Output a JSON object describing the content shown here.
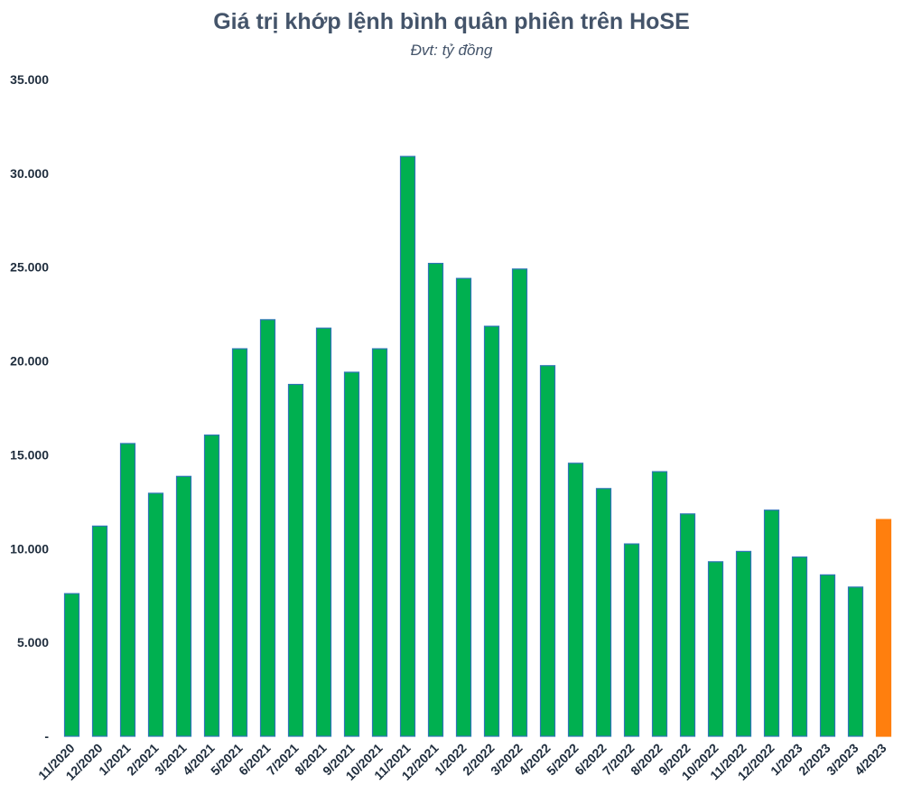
{
  "chart_data": {
    "type": "bar",
    "title": "Giá trị khớp lệnh bình quân phiên trên HoSE",
    "subtitle": "Đvt: tỷ đồng",
    "xlabel": "",
    "ylabel": "",
    "ylim": [
      0,
      35000
    ],
    "y_ticks": [
      "-",
      "5.000",
      "10.000",
      "15.000",
      "20.000",
      "25.000",
      "30.000",
      "35.000"
    ],
    "y_tick_values": [
      0,
      5000,
      10000,
      15000,
      20000,
      25000,
      30000,
      35000
    ],
    "grid": false,
    "legend": "none",
    "categories": [
      "11/2020",
      "12/2020",
      "1/2021",
      "2/2021",
      "3/2021",
      "4/2021",
      "5/2021",
      "6/2021",
      "7/2021",
      "8/2021",
      "9/2021",
      "10/2021",
      "11/2021",
      "12/2021",
      "1/2022",
      "2/2022",
      "3/2022",
      "4/2022",
      "5/2022",
      "6/2022",
      "7/2022",
      "8/2022",
      "9/2022",
      "10/2022",
      "11/2022",
      "12/2022",
      "1/2023",
      "2/2023",
      "3/2023",
      "4/2023"
    ],
    "values": [
      7600,
      11200,
      15600,
      12950,
      13850,
      16050,
      20650,
      22200,
      18750,
      21750,
      19400,
      20650,
      30900,
      25200,
      24400,
      21850,
      24900,
      19750,
      14550,
      13200,
      10250,
      14100,
      11850,
      9300,
      9850,
      12050,
      9550,
      8600,
      7950,
      11550
    ],
    "colors": {
      "default": "#00b050",
      "default_border": "#2e75b6",
      "highlight": "#ff7f0e",
      "highlight_border": "#ff7f0e"
    },
    "highlight_index": 29
  }
}
